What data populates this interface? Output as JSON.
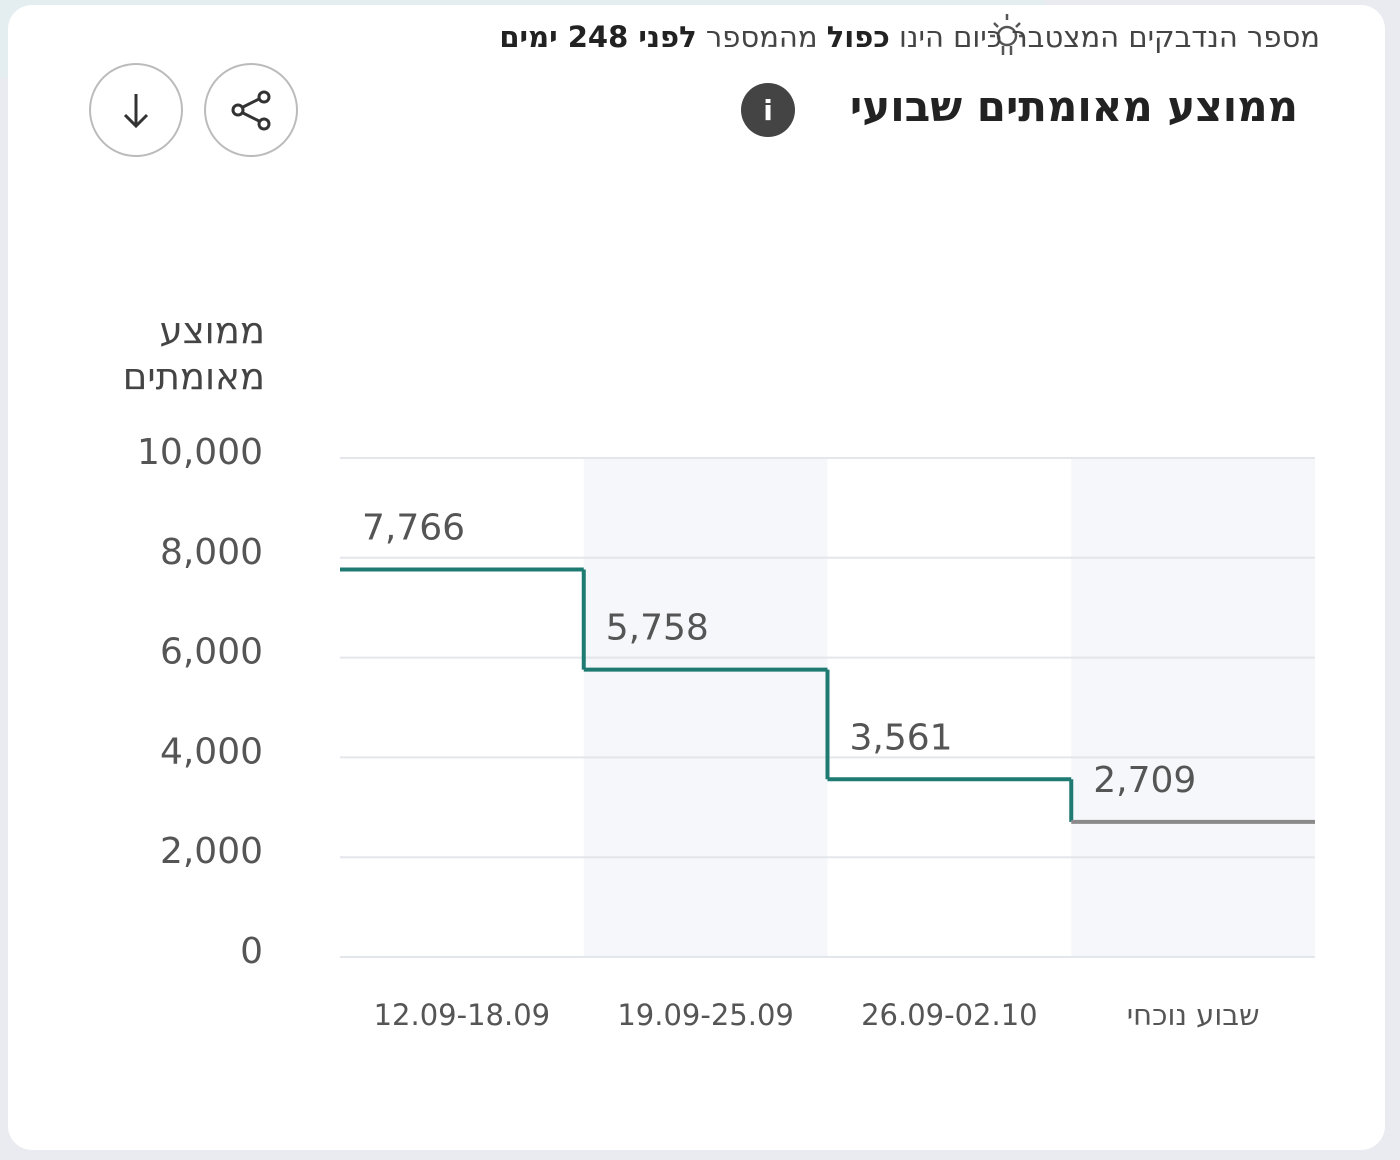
{
  "chart_data": {
    "type": "step",
    "title": "ממוצע מאומתים שבועי",
    "note": [
      "מספר הנדבקים המצטבר כיום הינו",
      "כפול",
      "מהמספר",
      "לפני 248 ימים"
    ],
    "ylabel": "ממוצע מאומתים",
    "categories": [
      "12.09-18.09",
      "19.09-25.09",
      "26.09-02.10",
      "שבוע נוכחי"
    ],
    "values": [
      7766,
      5758,
      3561,
      2709
    ],
    "value_labels": [
      "7,766",
      "5,758",
      "3,561",
      "2,709"
    ],
    "color": "#1f7a72",
    "current_color": "#8a8a8a",
    "band_color": "#f5f7fa",
    "ylim": [
      0,
      10000
    ],
    "yticks": [
      0,
      {
        "value": 2000,
        "label": "2,000"
      },
      {
        "value": 4000,
        "label": "4,000"
      },
      {
        "value": 6000,
        "label": "6,000"
      },
      {
        "value": 8000,
        "label": "8,000"
      },
      {
        "value": 10000,
        "label": "10,000"
      }
    ],
    "grid": true
  }
}
